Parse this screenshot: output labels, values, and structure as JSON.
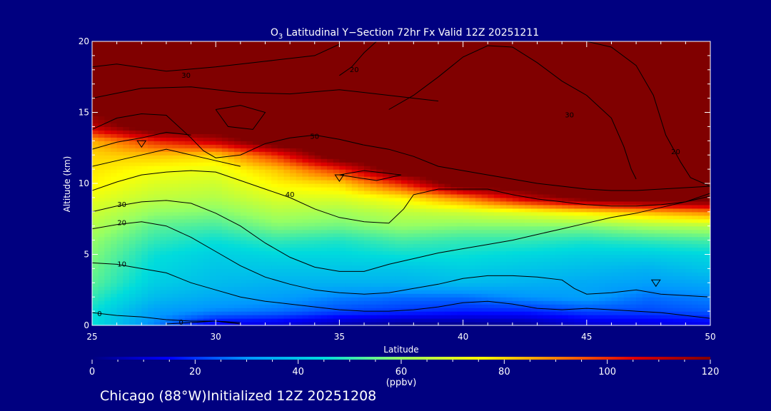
{
  "chart_data": {
    "type": "heatmap",
    "title_prefix": "O",
    "title_sub": "3",
    "title_rest": " Latitudinal Y−Section 72hr  Fx Valid 12Z 20251211",
    "xlabel": "Latitude",
    "ylabel": "Altitude (km)",
    "xlim": [
      25,
      50
    ],
    "ylim": [
      0,
      20
    ],
    "xticks": [
      25,
      30,
      35,
      40,
      45,
      50
    ],
    "yticks": [
      0,
      5,
      10,
      15,
      20
    ],
    "colorbar": {
      "min": 0,
      "max": 120,
      "ticks": [
        0,
        20,
        40,
        60,
        80,
        100,
        120
      ],
      "unit": "(ppbv)",
      "stops": [
        "#000080",
        "#0000ff",
        "#0096ff",
        "#00dcdc",
        "#96ff64",
        "#ffff00",
        "#ff8000",
        "#e00000",
        "#800000"
      ]
    },
    "grid_lat": [
      25,
      27.5,
      30,
      32.5,
      35,
      37.5,
      40,
      42.5,
      45,
      47.5,
      50
    ],
    "grid_alt": [
      0,
      1,
      2,
      3,
      4,
      5,
      6,
      7,
      8,
      9,
      10,
      11,
      12,
      13,
      14,
      15,
      16,
      17,
      18,
      19,
      20
    ],
    "values": [
      [
        46,
        28,
        12,
        10,
        4,
        0,
        0,
        2,
        8,
        10,
        12
      ],
      [
        46,
        32,
        28,
        26,
        22,
        20,
        18,
        18,
        22,
        22,
        24
      ],
      [
        50,
        38,
        34,
        32,
        28,
        26,
        26,
        30,
        32,
        26,
        28
      ],
      [
        54,
        42,
        38,
        36,
        36,
        36,
        38,
        36,
        34,
        32,
        34
      ],
      [
        56,
        44,
        40,
        40,
        40,
        40,
        42,
        40,
        38,
        36,
        40
      ],
      [
        58,
        46,
        42,
        44,
        44,
        46,
        46,
        44,
        42,
        42,
        44
      ],
      [
        60,
        50,
        46,
        50,
        48,
        52,
        50,
        50,
        48,
        50,
        52
      ],
      [
        64,
        54,
        52,
        58,
        56,
        60,
        58,
        58,
        58,
        62,
        64
      ],
      [
        68,
        60,
        58,
        64,
        62,
        66,
        68,
        72,
        78,
        84,
        90
      ],
      [
        72,
        66,
        64,
        70,
        70,
        76,
        90,
        110,
        125,
        130,
        130
      ],
      [
        76,
        70,
        68,
        76,
        80,
        100,
        130,
        130,
        130,
        130,
        130
      ],
      [
        78,
        74,
        72,
        82,
        100,
        130,
        130,
        130,
        130,
        130,
        130
      ],
      [
        80,
        82,
        80,
        100,
        130,
        130,
        130,
        130,
        130,
        130,
        130
      ],
      [
        84,
        100,
        110,
        130,
        130,
        130,
        130,
        130,
        130,
        130,
        130
      ],
      [
        110,
        130,
        130,
        130,
        130,
        130,
        130,
        130,
        130,
        130,
        130
      ],
      [
        120,
        130,
        130,
        130,
        130,
        130,
        130,
        130,
        130,
        130,
        130
      ],
      [
        130,
        130,
        130,
        130,
        130,
        130,
        130,
        130,
        130,
        130,
        130
      ],
      [
        130,
        130,
        130,
        130,
        130,
        130,
        130,
        130,
        130,
        130,
        130
      ],
      [
        130,
        130,
        130,
        130,
        130,
        130,
        130,
        130,
        130,
        130,
        130
      ],
      [
        130,
        130,
        130,
        130,
        130,
        130,
        130,
        130,
        130,
        130,
        130
      ],
      [
        130,
        130,
        130,
        130,
        130,
        130,
        130,
        130,
        130,
        130,
        130
      ]
    ],
    "contours": [
      {
        "label": "0",
        "label_at": [
          25.3,
          0.8
        ],
        "points": [
          [
            25,
            0.9
          ],
          [
            26,
            0.7
          ],
          [
            27,
            0.6
          ],
          [
            28,
            0.4
          ],
          [
            29,
            0.3
          ],
          [
            30,
            0.3
          ],
          [
            31,
            0.2
          ]
        ]
      },
      {
        "label": "0",
        "label_at": [
          28.6,
          0.2
        ],
        "points": [
          [
            28,
            0.1
          ],
          [
            29,
            0.2
          ],
          [
            30,
            0.3
          ],
          [
            31,
            0.1
          ]
        ]
      },
      {
        "label": "10",
        "label_at": [
          26.2,
          4.3
        ],
        "points": [
          [
            25,
            4.4
          ],
          [
            26,
            4.3
          ],
          [
            27,
            4.0
          ],
          [
            28,
            3.7
          ],
          [
            29,
            3.0
          ],
          [
            30,
            2.5
          ],
          [
            31,
            2.0
          ],
          [
            32,
            1.7
          ],
          [
            33,
            1.5
          ],
          [
            34,
            1.3
          ],
          [
            35,
            1.1
          ],
          [
            36,
            1.0
          ],
          [
            37,
            1.0
          ],
          [
            38,
            1.1
          ],
          [
            39,
            1.3
          ],
          [
            40,
            1.6
          ],
          [
            41,
            1.7
          ],
          [
            42,
            1.5
          ],
          [
            43,
            1.2
          ],
          [
            44,
            1.1
          ],
          [
            45,
            1.2
          ],
          [
            46,
            1.1
          ],
          [
            47,
            1.0
          ],
          [
            48,
            0.9
          ],
          [
            49,
            0.7
          ],
          [
            50,
            0.5
          ]
        ]
      },
      {
        "label": "20",
        "label_at": [
          26.2,
          7.2
        ],
        "points": [
          [
            25,
            6.8
          ],
          [
            26,
            7.1
          ],
          [
            27,
            7.3
          ],
          [
            28,
            7.0
          ],
          [
            29,
            6.2
          ],
          [
            30,
            5.2
          ],
          [
            31,
            4.2
          ],
          [
            32,
            3.4
          ],
          [
            33,
            2.9
          ],
          [
            34,
            2.5
          ],
          [
            35,
            2.3
          ],
          [
            36,
            2.2
          ],
          [
            37,
            2.3
          ],
          [
            38,
            2.6
          ],
          [
            39,
            2.9
          ],
          [
            40,
            3.3
          ],
          [
            41,
            3.5
          ],
          [
            42,
            3.5
          ],
          [
            43,
            3.4
          ],
          [
            44,
            3.2
          ],
          [
            44.5,
            2.6
          ],
          [
            45,
            2.2
          ],
          [
            46,
            2.3
          ],
          [
            47,
            2.5
          ],
          [
            48,
            2.2
          ],
          [
            49,
            2.1
          ],
          [
            50,
            2.0
          ]
        ]
      },
      {
        "label": "30",
        "label_at": [
          26.2,
          8.5
        ],
        "points": [
          [
            25,
            8.0
          ],
          [
            26,
            8.4
          ],
          [
            27,
            8.7
          ],
          [
            28,
            8.8
          ],
          [
            29,
            8.6
          ],
          [
            30,
            7.9
          ],
          [
            31,
            7.0
          ],
          [
            32,
            5.8
          ],
          [
            33,
            4.8
          ],
          [
            34,
            4.1
          ],
          [
            35,
            3.8
          ],
          [
            36,
            3.8
          ],
          [
            37,
            4.3
          ],
          [
            38,
            4.7
          ],
          [
            39,
            5.1
          ],
          [
            40,
            5.4
          ],
          [
            41,
            5.7
          ],
          [
            42,
            6.0
          ],
          [
            43,
            6.4
          ],
          [
            44,
            6.8
          ],
          [
            45,
            7.2
          ],
          [
            46,
            7.6
          ],
          [
            47,
            7.9
          ],
          [
            48,
            8.3
          ],
          [
            49,
            8.7
          ],
          [
            50,
            9.3
          ]
        ]
      },
      {
        "label": "40",
        "label_at": [
          33.0,
          9.2
        ],
        "points": [
          [
            25,
            9.5
          ],
          [
            26,
            10.1
          ],
          [
            27,
            10.6
          ],
          [
            28,
            10.8
          ],
          [
            29,
            10.9
          ],
          [
            30,
            10.8
          ],
          [
            31,
            10.2
          ],
          [
            32,
            9.6
          ],
          [
            33,
            9.0
          ],
          [
            34,
            8.2
          ],
          [
            35,
            7.6
          ],
          [
            36,
            7.3
          ],
          [
            37,
            7.2
          ],
          [
            37.6,
            8.2
          ],
          [
            38,
            9.2
          ],
          [
            39,
            9.6
          ],
          [
            40,
            9.6
          ],
          [
            41,
            9.6
          ],
          [
            42,
            9.2
          ],
          [
            43,
            8.9
          ],
          [
            44,
            8.7
          ],
          [
            45,
            8.5
          ],
          [
            46,
            8.4
          ],
          [
            47,
            8.4
          ],
          [
            48,
            8.5
          ],
          [
            49,
            8.7
          ],
          [
            50,
            9.1
          ]
        ]
      },
      {
        "label": "50",
        "label_at": [
          34.0,
          13.3
        ],
        "points": [
          [
            25,
            13.8
          ],
          [
            26,
            14.6
          ],
          [
            27,
            14.9
          ],
          [
            28,
            14.8
          ],
          [
            29,
            13.2
          ],
          [
            29.5,
            12.3
          ],
          [
            30,
            11.8
          ],
          [
            31,
            12.0
          ],
          [
            32,
            12.8
          ],
          [
            33,
            13.2
          ],
          [
            34,
            13.4
          ],
          [
            35,
            13.1
          ],
          [
            36,
            12.7
          ],
          [
            37,
            12.4
          ],
          [
            38,
            11.9
          ],
          [
            39,
            11.2
          ],
          [
            40,
            10.9
          ],
          [
            41,
            10.6
          ],
          [
            42,
            10.3
          ],
          [
            43,
            10.0
          ],
          [
            44,
            9.8
          ],
          [
            45,
            9.6
          ],
          [
            46,
            9.5
          ],
          [
            47,
            9.5
          ],
          [
            48,
            9.6
          ],
          [
            49,
            9.7
          ],
          [
            50,
            9.8
          ]
        ]
      },
      {
        "label": "30",
        "label_at": [
          44.3,
          14.8
        ],
        "points": [
          [
            37,
            15.2
          ],
          [
            38,
            16.2
          ],
          [
            39,
            17.5
          ],
          [
            40,
            18.9
          ],
          [
            41,
            19.7
          ],
          [
            42,
            19.6
          ],
          [
            43,
            18.5
          ],
          [
            44,
            17.2
          ],
          [
            45,
            16.2
          ],
          [
            46,
            14.6
          ],
          [
            46.5,
            12.6
          ],
          [
            46.8,
            11.0
          ],
          [
            47,
            10.3
          ]
        ]
      },
      {
        "label": "20",
        "label_at": [
          48.6,
          12.2
        ],
        "points": [
          [
            45,
            20.0
          ],
          [
            46,
            19.6
          ],
          [
            47,
            18.3
          ],
          [
            47.7,
            16.2
          ],
          [
            48.2,
            13.4
          ],
          [
            48.8,
            11.5
          ],
          [
            49.2,
            10.4
          ],
          [
            50,
            9.8
          ]
        ]
      },
      {
        "label": "20",
        "label_at": [
          35.6,
          18.0
        ],
        "points": [
          [
            36.5,
            20
          ],
          [
            36,
            19.2
          ],
          [
            35.5,
            18.2
          ],
          [
            35,
            17.6
          ]
        ]
      },
      {
        "label": "30",
        "label_at": [
          28.8,
          17.6
        ],
        "points": [
          [
            25,
            18.2
          ],
          [
            26,
            18.4
          ],
          [
            28,
            17.9
          ],
          [
            30,
            18.2
          ],
          [
            32,
            18.6
          ],
          [
            34,
            19.0
          ],
          [
            35,
            19.8
          ]
        ]
      },
      {
        "label": "",
        "label_at": [
          0,
          0
        ],
        "points": [
          [
            25,
            16.0
          ],
          [
            27,
            16.7
          ],
          [
            29,
            16.8
          ],
          [
            31,
            16.4
          ],
          [
            33,
            16.3
          ],
          [
            35,
            16.6
          ],
          [
            37,
            16.2
          ],
          [
            39,
            15.8
          ]
        ]
      },
      {
        "label": "",
        "label_at": [
          0,
          0
        ],
        "points": [
          [
            30,
            15.2
          ],
          [
            31,
            15.5
          ],
          [
            32,
            15.0
          ],
          [
            31.5,
            13.8
          ],
          [
            30.5,
            14.0
          ],
          [
            30,
            15.2
          ]
        ]
      },
      {
        "label": "",
        "label_at": [
          0,
          0
        ],
        "points": [
          [
            35,
            10.6
          ],
          [
            36,
            10.9
          ],
          [
            37.5,
            10.6
          ],
          [
            36.5,
            10.2
          ],
          [
            35,
            10.6
          ]
        ]
      },
      {
        "label": "",
        "label_at": [
          0,
          0
        ],
        "points": [
          [
            25,
            11.2
          ],
          [
            26,
            11.6
          ],
          [
            27,
            12.0
          ],
          [
            28,
            12.4
          ],
          [
            29,
            12.0
          ],
          [
            30,
            11.6
          ],
          [
            31,
            11.2
          ]
        ]
      },
      {
        "label": "",
        "label_at": [
          0,
          0
        ],
        "points": [
          [
            25,
            12.4
          ],
          [
            26,
            12.9
          ],
          [
            27,
            13.2
          ],
          [
            28,
            13.6
          ],
          [
            29,
            13.4
          ]
        ]
      }
    ],
    "triangles": [
      [
        27.0,
        12.8
      ],
      [
        35.0,
        10.4
      ],
      [
        47.8,
        3.0
      ]
    ]
  },
  "footer": {
    "location_text": "Chicago (88°W)Initialized 12Z 20251208"
  }
}
